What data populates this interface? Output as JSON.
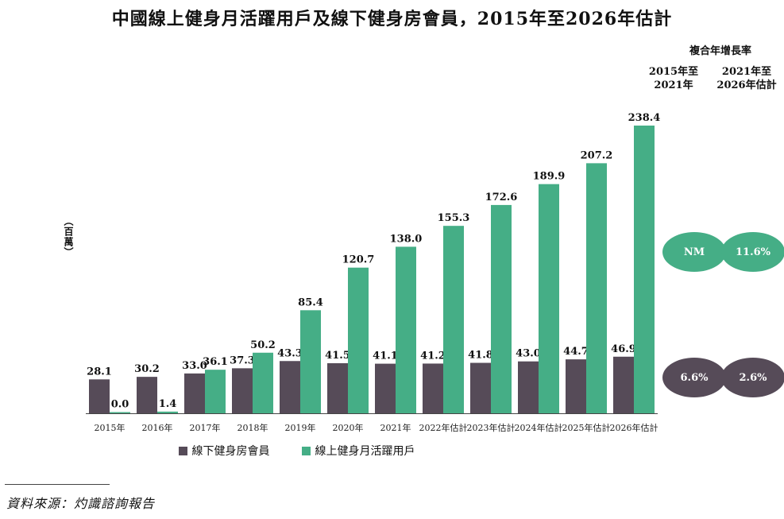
{
  "title": "中國線上健身月活躍用戶及線下健身房會員，2015年至2026年估計",
  "ylabel": "（百萬）",
  "cagr": {
    "heading": "複合年增長率",
    "col1": "2015年至\n2021年",
    "col1_line1": "2015年至",
    "col1_line2": "2021年",
    "col2_line1": "2021年至",
    "col2_line2": "2026年估計",
    "online_col1": "NM",
    "online_col2": "11.6%",
    "offline_col1": "6.6%",
    "offline_col2": "2.6%"
  },
  "legend": {
    "offline": "線下健身房會員",
    "online": "線上健身月活躍用戶"
  },
  "source": "資料來源：灼識諮詢報告",
  "colors": {
    "offline": "#564b58",
    "online": "#45ae86"
  },
  "chart_data": {
    "type": "bar",
    "categories": [
      "2015年",
      "2016年",
      "2017年",
      "2018年",
      "2019年",
      "2020年",
      "2021年",
      "2022年估計",
      "2023年估計",
      "2024年估計",
      "2025年估計",
      "2026年估計"
    ],
    "series": [
      {
        "name": "線下健身房會員",
        "values": [
          28.1,
          30.2,
          33.0,
          37.3,
          43.3,
          41.5,
          41.1,
          41.2,
          41.8,
          43.0,
          44.7,
          46.9
        ]
      },
      {
        "name": "線上健身月活躍用戶",
        "values": [
          0.0,
          1.4,
          36.1,
          50.2,
          85.4,
          120.7,
          138.0,
          155.3,
          172.6,
          189.9,
          207.2,
          238.4
        ]
      }
    ],
    "ylabel": "（百萬）",
    "ylim": [
      0,
      250
    ],
    "grid": false,
    "legend": "bottom"
  }
}
